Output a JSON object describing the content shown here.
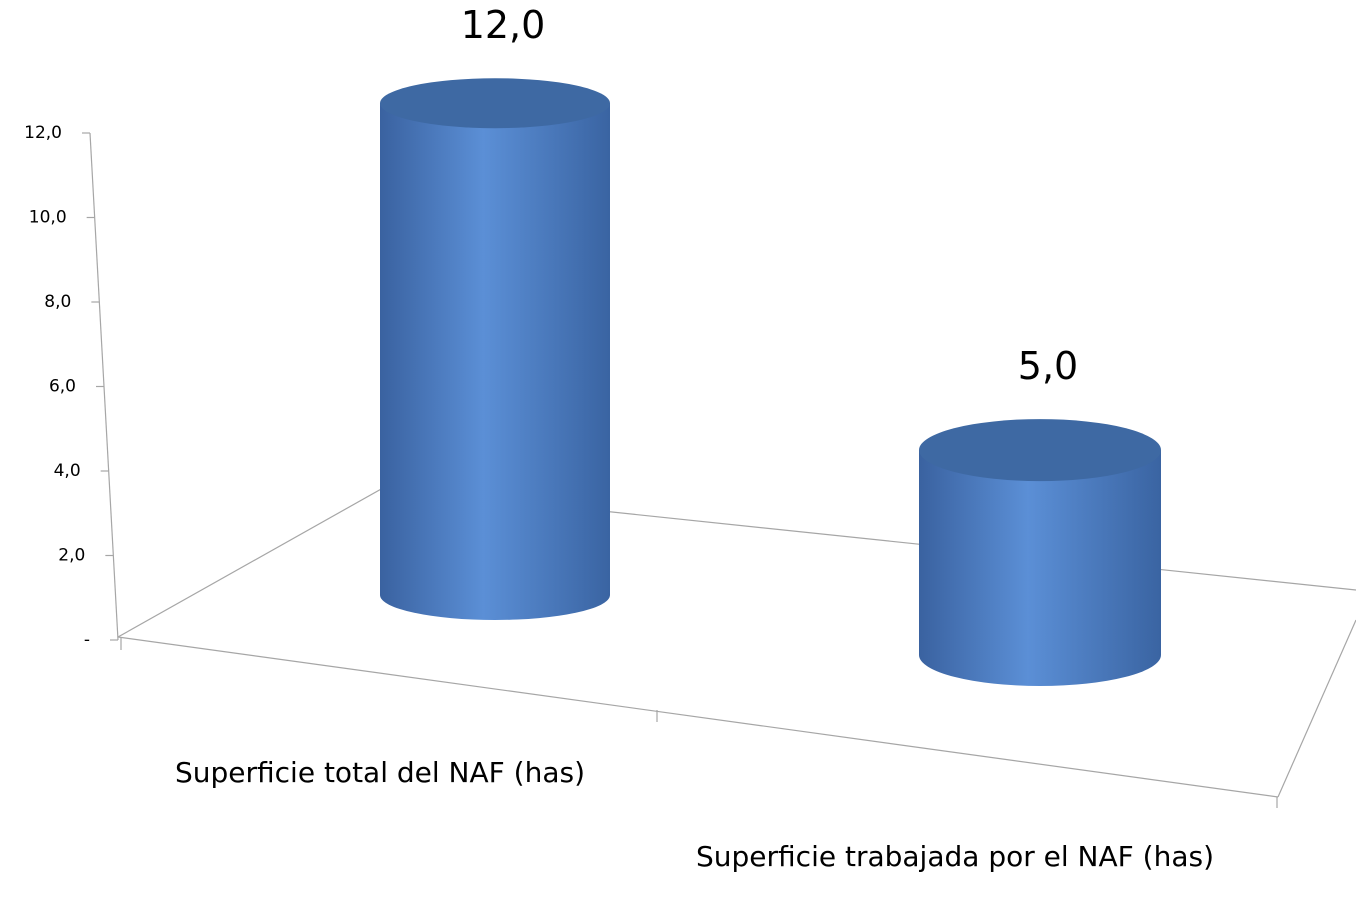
{
  "chart_data": {
    "type": "bar3d",
    "categories": [
      "Superficie total del NAF (has)",
      "Superficie trabajada por el NAF (has)"
    ],
    "values": [
      12,
      5
    ],
    "value_labels": [
      "12,0",
      "5,0"
    ],
    "color": "#4f81bd",
    "ylim": [
      0,
      12
    ],
    "yticks": [
      {
        "value": 0,
        "label": "-"
      },
      {
        "value": 2,
        "label": "2,0"
      },
      {
        "value": 4,
        "label": "4,0"
      },
      {
        "value": 6,
        "label": "6,0"
      },
      {
        "value": 8,
        "label": "8,0"
      },
      {
        "value": 10,
        "label": "10,0"
      },
      {
        "value": 12,
        "label": "12,0"
      }
    ]
  }
}
